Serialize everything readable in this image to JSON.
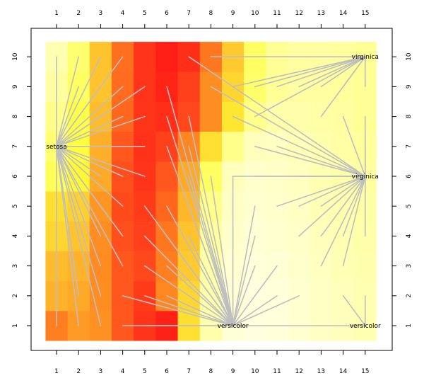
{
  "chart_data": {
    "type": "heatmap",
    "title": "",
    "xlabel": "",
    "ylabel": "",
    "x_categories": [
      "1",
      "2",
      "3",
      "4",
      "5",
      "6",
      "7",
      "8",
      "9",
      "10",
      "11",
      "12",
      "13",
      "14",
      "15"
    ],
    "y_categories": [
      "1",
      "2",
      "3",
      "4",
      "5",
      "6",
      "7",
      "8",
      "9",
      "10"
    ],
    "xlim": [
      0.5,
      15.5
    ],
    "ylim": [
      0.5,
      10.5
    ],
    "grid": false,
    "colormap": [
      "#ffffe6",
      "#ffff9e",
      "#ffff33",
      "#ffc32e",
      "#ff8c21",
      "#ff4a1c",
      "#ff1414"
    ],
    "values": [
      [
        0.7,
        0.62,
        0.65,
        0.8,
        0.9,
        0.96,
        0.42,
        0.14,
        0.04,
        0.02,
        0.03,
        0.05,
        0.08,
        0.1,
        0.12
      ],
      [
        0.55,
        0.58,
        0.66,
        0.8,
        0.88,
        0.68,
        0.45,
        0.14,
        0.04,
        0.02,
        0.03,
        0.05,
        0.08,
        0.1,
        0.12
      ],
      [
        0.52,
        0.55,
        0.67,
        0.8,
        0.84,
        0.7,
        0.48,
        0.15,
        0.05,
        0.03,
        0.04,
        0.06,
        0.09,
        0.11,
        0.13
      ],
      [
        0.45,
        0.5,
        0.66,
        0.82,
        0.86,
        0.72,
        0.5,
        0.17,
        0.06,
        0.04,
        0.05,
        0.07,
        0.1,
        0.12,
        0.14
      ],
      [
        0.42,
        0.46,
        0.64,
        0.83,
        0.88,
        0.76,
        0.54,
        0.2,
        0.08,
        0.05,
        0.06,
        0.08,
        0.11,
        0.13,
        0.15
      ],
      [
        0.28,
        0.35,
        0.58,
        0.82,
        0.9,
        0.8,
        0.58,
        0.26,
        0.1,
        0.06,
        0.07,
        0.09,
        0.12,
        0.14,
        0.16
      ],
      [
        0.24,
        0.32,
        0.56,
        0.8,
        0.91,
        0.86,
        0.68,
        0.42,
        0.2,
        0.1,
        0.09,
        0.11,
        0.13,
        0.15,
        0.17
      ],
      [
        0.2,
        0.3,
        0.52,
        0.76,
        0.9,
        0.92,
        0.84,
        0.66,
        0.4,
        0.2,
        0.14,
        0.14,
        0.15,
        0.16,
        0.18
      ],
      [
        0.16,
        0.26,
        0.5,
        0.75,
        0.9,
        0.95,
        0.86,
        0.66,
        0.45,
        0.25,
        0.18,
        0.16,
        0.16,
        0.17,
        0.18
      ],
      [
        0.12,
        0.24,
        0.5,
        0.74,
        0.9,
        0.97,
        0.92,
        0.72,
        0.48,
        0.26,
        0.18,
        0.16,
        0.16,
        0.17,
        0.18
      ]
    ],
    "annotations": [
      {
        "label": "setosa",
        "x": 1,
        "y": 7
      },
      {
        "label": "virginica",
        "x": 15,
        "y": 10
      },
      {
        "label": "virginica",
        "x": 15,
        "y": 6
      },
      {
        "label": "versicolor",
        "x": 9,
        "y": 1
      },
      {
        "label": "versicolor",
        "x": 15,
        "y": 1
      }
    ],
    "connector_color": "#bebebe",
    "connector_segments": [
      [
        1,
        7,
        1,
        10
      ],
      [
        1,
        7,
        2,
        10
      ],
      [
        1,
        7,
        3,
        10
      ],
      [
        1,
        7,
        4,
        10
      ],
      [
        1,
        7,
        3,
        9
      ],
      [
        1,
        7,
        4,
        9
      ],
      [
        1,
        7,
        2,
        9
      ],
      [
        1,
        7,
        5,
        9
      ],
      [
        1,
        7,
        4,
        8
      ],
      [
        1,
        7,
        5,
        8
      ],
      [
        1,
        7,
        3,
        8
      ],
      [
        1,
        7,
        5,
        7
      ],
      [
        1,
        7,
        4,
        6
      ],
      [
        1,
        7,
        5,
        6
      ],
      [
        1,
        7,
        3,
        6
      ],
      [
        1,
        7,
        4,
        5
      ],
      [
        1,
        7,
        3,
        5
      ],
      [
        1,
        7,
        4,
        4
      ],
      [
        1,
        7,
        3,
        4
      ],
      [
        1,
        7,
        4,
        3
      ],
      [
        1,
        7,
        3,
        3
      ],
      [
        1,
        7,
        3,
        2
      ],
      [
        1,
        7,
        2,
        2
      ],
      [
        1,
        7,
        2,
        1
      ],
      [
        1,
        7,
        3,
        1
      ],
      [
        1,
        7,
        1,
        1
      ],
      [
        15,
        10,
        8,
        10
      ],
      [
        15,
        10,
        9,
        9
      ],
      [
        15,
        10,
        10,
        9
      ],
      [
        15,
        10,
        11,
        9
      ],
      [
        15,
        10,
        12,
        9
      ],
      [
        15,
        10,
        13,
        9
      ],
      [
        15,
        10,
        14,
        9
      ],
      [
        15,
        10,
        10,
        8
      ],
      [
        15,
        10,
        13,
        8
      ],
      [
        15,
        10,
        15,
        9
      ],
      [
        15,
        6,
        7,
        10
      ],
      [
        15,
        6,
        8,
        9
      ],
      [
        15,
        6,
        9,
        8
      ],
      [
        15,
        6,
        10,
        7
      ],
      [
        15,
        6,
        11,
        7
      ],
      [
        15,
        6,
        9,
        6
      ],
      [
        15,
        6,
        10,
        6
      ],
      [
        15,
        6,
        12,
        6
      ],
      [
        15,
        6,
        11,
        5
      ],
      [
        15,
        6,
        12,
        5
      ],
      [
        15,
        6,
        13,
        5
      ],
      [
        15,
        6,
        12,
        4
      ],
      [
        15,
        6,
        13,
        4
      ],
      [
        15,
        6,
        14,
        4
      ],
      [
        15,
        6,
        13,
        3
      ],
      [
        15,
        6,
        14,
        3
      ],
      [
        15,
        6,
        15,
        4
      ],
      [
        15,
        6,
        14,
        5
      ],
      [
        15,
        6,
        15,
        7
      ],
      [
        15,
        6,
        15,
        8
      ],
      [
        15,
        6,
        14,
        8
      ],
      [
        9,
        1,
        6,
        9
      ],
      [
        9,
        1,
        6,
        8
      ],
      [
        9,
        1,
        7,
        8
      ],
      [
        9,
        1,
        7,
        7
      ],
      [
        9,
        1,
        6,
        7
      ],
      [
        9,
        1,
        7,
        6
      ],
      [
        9,
        1,
        7,
        5
      ],
      [
        9,
        1,
        6,
        5
      ],
      [
        9,
        1,
        5,
        5
      ],
      [
        9,
        1,
        6,
        4
      ],
      [
        9,
        1,
        7,
        4
      ],
      [
        9,
        1,
        5,
        4
      ],
      [
        9,
        1,
        5,
        3
      ],
      [
        9,
        1,
        6,
        3
      ],
      [
        9,
        1,
        4,
        2
      ],
      [
        9,
        1,
        5,
        2
      ],
      [
        9,
        1,
        6,
        2
      ],
      [
        9,
        1,
        4,
        1
      ],
      [
        9,
        1,
        5,
        1
      ],
      [
        9,
        1,
        9,
        6
      ],
      [
        9,
        1,
        10,
        5
      ],
      [
        9,
        1,
        10,
        4
      ],
      [
        9,
        1,
        10,
        3
      ],
      [
        9,
        1,
        11,
        3
      ],
      [
        9,
        1,
        11,
        2
      ],
      [
        9,
        1,
        12,
        2
      ],
      [
        9,
        1,
        13,
        1
      ],
      [
        9,
        1,
        8,
        6
      ],
      [
        15,
        1,
        14,
        2
      ],
      [
        15,
        1,
        15,
        2
      ],
      [
        15,
        1,
        13,
        1
      ]
    ]
  }
}
